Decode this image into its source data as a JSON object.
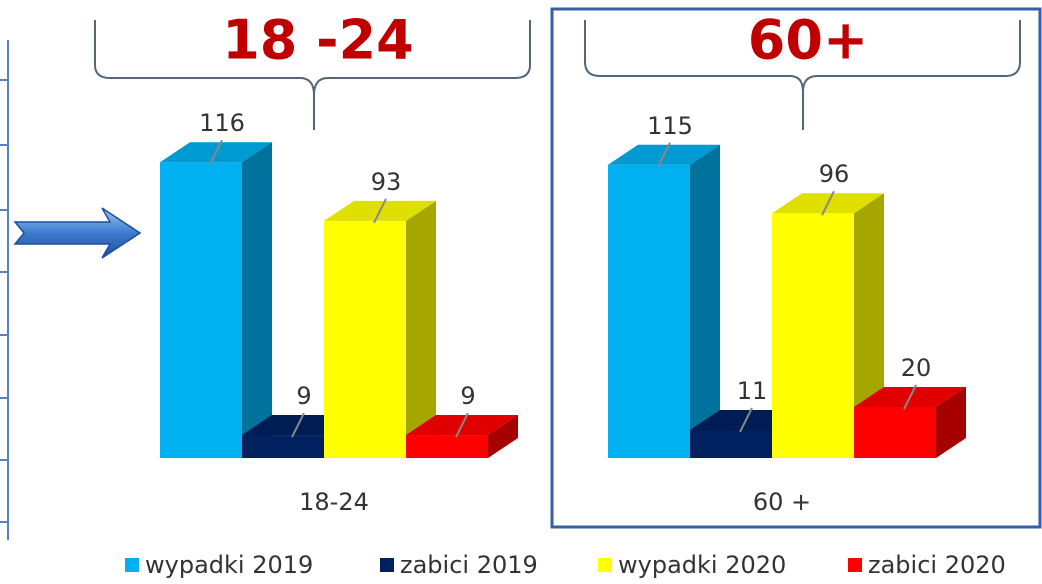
{
  "chart_data": {
    "type": "bar3d",
    "annotations": [
      "18 -24",
      "60+"
    ],
    "categories": [
      "18-24",
      "60 +"
    ],
    "series": [
      {
        "name": "wypadki 2019",
        "color": "#00b0f0",
        "values": [
          116,
          115
        ]
      },
      {
        "name": "zabici 2019",
        "color": "#002060",
        "values": [
          9,
          11
        ]
      },
      {
        "name": "wypadki 2020",
        "color": "#ffff00",
        "values": [
          93,
          96
        ]
      },
      {
        "name": "zabici 2020",
        "color": "#ff0000",
        "values": [
          9,
          20
        ]
      }
    ]
  }
}
